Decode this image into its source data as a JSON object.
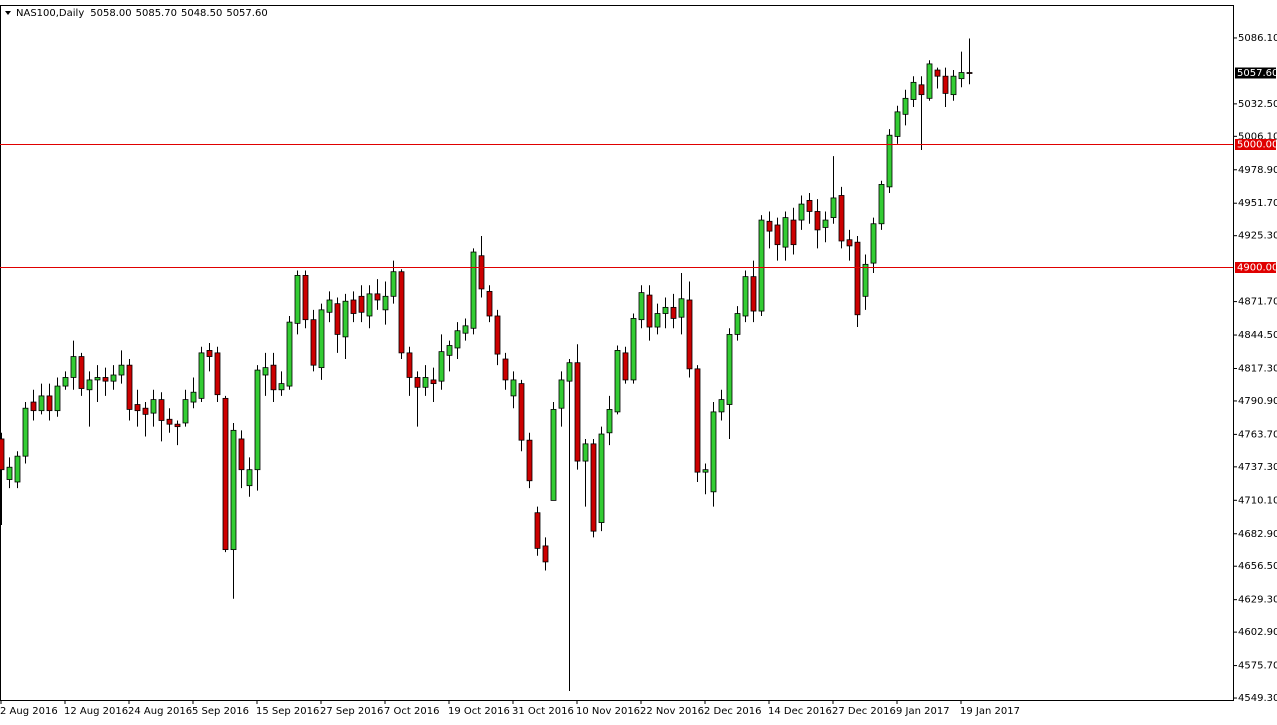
{
  "chart_data": {
    "type": "candlestick",
    "title": "NAS100,Daily",
    "quote_labels": [
      "5058.00",
      "5085.70",
      "5048.50",
      "5057.60"
    ],
    "categories": [
      "2 Aug 2016",
      null,
      null,
      null,
      null,
      null,
      null,
      null,
      "12 Aug 2016",
      null,
      null,
      null,
      null,
      null,
      null,
      null,
      "24 Aug 2016",
      null,
      null,
      null,
      null,
      null,
      null,
      null,
      "5 Sep 2016",
      null,
      null,
      null,
      null,
      null,
      null,
      null,
      "15 Sep 2016",
      null,
      null,
      null,
      null,
      null,
      null,
      null,
      "27 Sep 2016",
      null,
      null,
      null,
      null,
      null,
      null,
      null,
      "7 Oct 2016",
      null,
      null,
      null,
      null,
      null,
      null,
      null,
      "19 Oct 2016",
      null,
      null,
      null,
      null,
      null,
      null,
      null,
      "31 Oct 2016",
      null,
      null,
      null,
      null,
      null,
      null,
      null,
      "10 Nov 2016",
      null,
      null,
      null,
      null,
      null,
      null,
      null,
      "22 Nov 2016",
      null,
      null,
      null,
      null,
      null,
      null,
      null,
      "2 Dec 2016",
      null,
      null,
      null,
      null,
      null,
      null,
      null,
      "14 Dec 2016",
      null,
      null,
      null,
      null,
      null,
      null,
      null,
      "27 Dec 2016",
      null,
      null,
      null,
      null,
      null,
      null,
      null,
      "9 Jan 2017",
      null,
      null,
      null,
      null,
      null,
      null,
      null,
      "19 Jan 2017",
      null
    ],
    "open": [
      4760,
      4727,
      4725,
      4746,
      4790,
      4783,
      4795,
      4783,
      4803,
      4810,
      4827,
      4800,
      4808,
      4810,
      4807,
      4812,
      4820,
      4788,
      4785,
      4781,
      4792,
      4776,
      4772,
      4773,
      4790,
      4793,
      4832,
      4830,
      4793,
      4670,
      4760,
      4722,
      4735,
      4812,
      4820,
      4800,
      4803,
      4854,
      4893,
      4857,
      4818,
      4863,
      4870,
      4843,
      4873,
      4876,
      4860,
      4878,
      4865,
      4876,
      4896,
      4830,
      4810,
      4802,
      4808,
      4807,
      4828,
      4834,
      4846,
      4850,
      4909,
      4880,
      4860,
      4825,
      4795,
      4805,
      4759,
      4700,
      4673,
      4710,
      4785,
      4807,
      4822,
      4742,
      4756,
      4692,
      4765,
      4782,
      4830,
      4808,
      4857,
      4877,
      4851,
      4862,
      4867,
      4859,
      4873,
      4817,
      4733,
      4717,
      4782,
      4788,
      4845,
      4860,
      4892,
      4864,
      4937,
      4934,
      4916,
      4938,
      4938,
      4954,
      4945,
      4932,
      4940,
      4958,
      4922,
      4920,
      4876,
      4903,
      4935,
      4965,
      5006,
      5024,
      5036,
      5048,
      5037,
      5060,
      5055,
      5040,
      5053,
      5058
    ],
    "high": [
      4765,
      4745,
      4750,
      4790,
      4800,
      4805,
      4805,
      4810,
      4815,
      4840,
      4830,
      4815,
      4820,
      4818,
      4820,
      4832,
      4825,
      4800,
      4790,
      4800,
      4798,
      4785,
      4775,
      4800,
      4810,
      4835,
      4838,
      4835,
      4795,
      4773,
      4767,
      4745,
      4820,
      4830,
      4830,
      4815,
      4860,
      4897,
      4897,
      4865,
      4870,
      4880,
      4875,
      4878,
      4880,
      4885,
      4885,
      4890,
      4888,
      4905,
      4898,
      4835,
      4815,
      4820,
      4818,
      4845,
      4840,
      4855,
      4858,
      4915,
      4925,
      4885,
      4865,
      4830,
      4815,
      4808,
      4765,
      4705,
      4680,
      4790,
      4815,
      4825,
      4837,
      4760,
      4760,
      4770,
      4795,
      4836,
      4835,
      4862,
      4885,
      4885,
      4870,
      4875,
      4878,
      4895,
      4888,
      4820,
      4740,
      4790,
      4800,
      4850,
      4868,
      4897,
      4905,
      4942,
      4945,
      4940,
      4945,
      4948,
      4958,
      4960,
      4955,
      4945,
      4990,
      4965,
      4930,
      4925,
      4910,
      4940,
      4970,
      5012,
      5031,
      5044,
      5055,
      5055,
      5068,
      5062,
      5062,
      5060,
      5075,
      5085.7
    ],
    "low": [
      4690,
      4720,
      4720,
      4740,
      4775,
      4780,
      4775,
      4778,
      4800,
      4800,
      4795,
      4770,
      4790,
      4795,
      4800,
      4805,
      4775,
      4770,
      4762,
      4770,
      4758,
      4765,
      4755,
      4770,
      4785,
      4790,
      4815,
      4790,
      4668,
      4630,
      4720,
      4713,
      4718,
      4795,
      4790,
      4795,
      4800,
      4845,
      4850,
      4815,
      4808,
      4855,
      4830,
      4825,
      4855,
      4855,
      4850,
      4865,
      4853,
      4870,
      4825,
      4795,
      4770,
      4795,
      4790,
      4800,
      4815,
      4825,
      4840,
      4845,
      4875,
      4855,
      4820,
      4800,
      4785,
      4750,
      4720,
      4665,
      4653,
      4710,
      4770,
      4555,
      4735,
      4705,
      4680,
      4685,
      4755,
      4780,
      4805,
      4805,
      4850,
      4840,
      4845,
      4850,
      4850,
      4845,
      4810,
      4725,
      4715,
      4705,
      4775,
      4760,
      4840,
      4855,
      4855,
      4860,
      4915,
      4905,
      4905,
      4910,
      4930,
      4935,
      4915,
      4920,
      4935,
      4915,
      4905,
      4851,
      4865,
      4895,
      4930,
      4960,
      5000,
      5015,
      5030,
      4995,
      5035,
      5045,
      5030,
      5035,
      5046,
      5048.5
    ],
    "close": [
      4735,
      4737,
      4746,
      4785,
      4783,
      4795,
      4783,
      4803,
      4810,
      4827,
      4801,
      4808,
      4810,
      4807,
      4812,
      4820,
      4784,
      4783,
      4780,
      4792,
      4775,
      4772,
      4770,
      4792,
      4798,
      4830,
      4827,
      4796,
      4670,
      4767,
      4735,
      4735,
      4816,
      4818,
      4800,
      4805,
      4855,
      4893,
      4857,
      4820,
      4865,
      4873,
      4845,
      4872,
      4862,
      4863,
      4878,
      4873,
      4876,
      4896,
      4830,
      4810,
      4802,
      4810,
      4805,
      4831,
      4836,
      4848,
      4852,
      4912,
      4882,
      4860,
      4829,
      4808,
      4808,
      4759,
      4726,
      4671,
      4660,
      4784,
      4808,
      4822,
      4742,
      4756,
      4685,
      4764,
      4784,
      4832,
      4808,
      4858,
      4879,
      4851,
      4862,
      4867,
      4858,
      4874,
      4817,
      4733,
      4735,
      4782,
      4792,
      4845,
      4862,
      4892,
      4864,
      4938,
      4929,
      4918,
      4940,
      4918,
      4951,
      4945,
      4930,
      4938,
      4956,
      4921,
      4917,
      4861,
      4902,
      4935,
      4967,
      5007,
      5026,
      5037,
      5050,
      5040,
      5065,
      5055,
      5041,
      5055,
      5058,
      5057.6
    ],
    "up_color": "#33cc33",
    "down_color": "#cc0000",
    "ylim": [
      4547.7,
      5112.9
    ],
    "yticks": [
      {
        "value": 5086.1,
        "label": "5086.10"
      },
      {
        "value": 5032.5,
        "label": "5032.50"
      },
      {
        "value": 5006.1,
        "label": "5006.10"
      },
      {
        "value": 4978.9,
        "label": "4978.90"
      },
      {
        "value": 4951.7,
        "label": "4951.70"
      },
      {
        "value": 4925.3,
        "label": "4925.30"
      },
      {
        "value": 4871.7,
        "label": "4871.70"
      },
      {
        "value": 4844.5,
        "label": "4844.50"
      },
      {
        "value": 4817.3,
        "label": "4817.30"
      },
      {
        "value": 4790.9,
        "label": "4790.90"
      },
      {
        "value": 4763.7,
        "label": "4763.70"
      },
      {
        "value": 4737.3,
        "label": "4737.30"
      },
      {
        "value": 4710.1,
        "label": "4710.10"
      },
      {
        "value": 4682.9,
        "label": "4682.90"
      },
      {
        "value": 4656.5,
        "label": "4656.50"
      },
      {
        "value": 4629.3,
        "label": "4629.30"
      },
      {
        "value": 4602.9,
        "label": "4602.90"
      },
      {
        "value": 4575.7,
        "label": "4575.70"
      },
      {
        "value": 4549.3,
        "label": "4549.30"
      }
    ],
    "hlines": [
      {
        "value": 5000,
        "label": "5000.00",
        "color": "#e00000"
      },
      {
        "value": 4900,
        "label": "4900.00",
        "color": "#e00000"
      }
    ],
    "price_tag": {
      "value": 5057.6,
      "label": "5057.60"
    }
  }
}
